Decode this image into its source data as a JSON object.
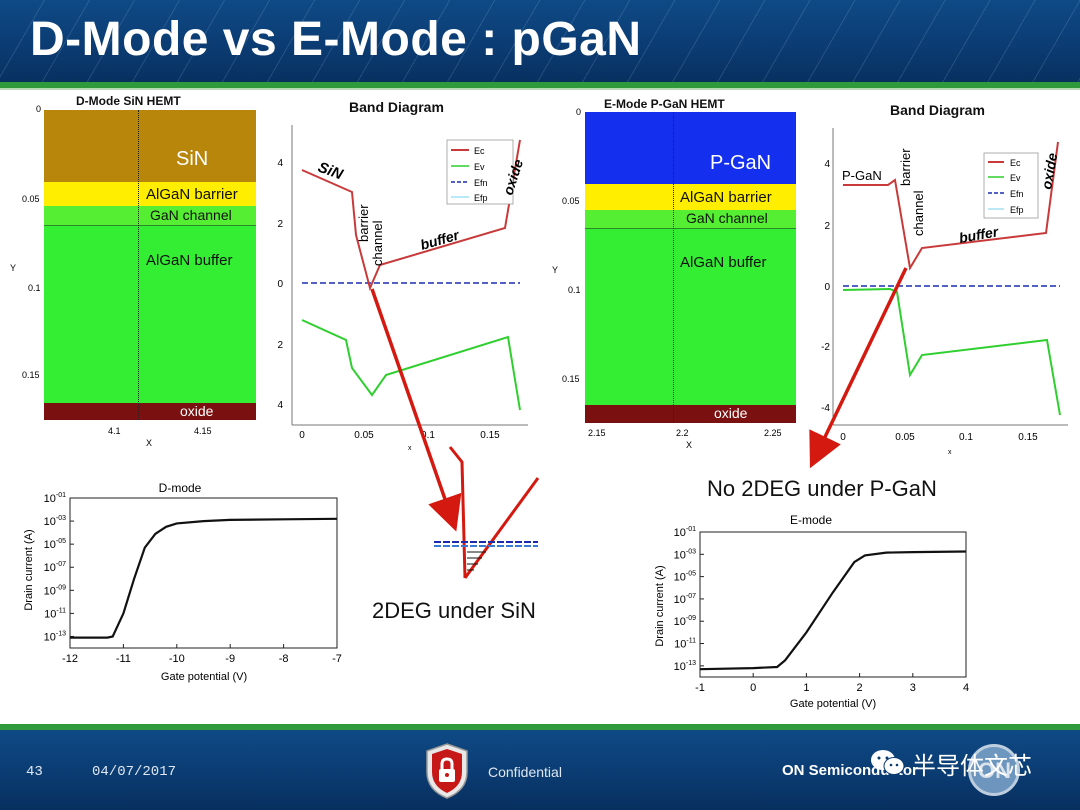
{
  "title": "D-Mode vs E-Mode : pGaN",
  "footer": {
    "page_number": "43",
    "date": "04/07/2017",
    "confidential": "Confidential",
    "company": "ON Semiconductor",
    "watermark": "半导体文芯",
    "icons": [
      "lock-shield-icon",
      "wechat-icon",
      "on-logo-icon"
    ]
  },
  "dmode_structure": {
    "title": "D-Mode SiN HEMT",
    "layers": [
      "SiN",
      "AlGaN barrier",
      "GaN channel",
      "AlGaN buffer",
      "oxide"
    ],
    "y_label": "Y",
    "x_label": "X",
    "y_ticks": [
      "0",
      "0.05",
      "0.1",
      "0.15"
    ],
    "x_ticks": [
      "4.1",
      "4.15"
    ],
    "colors": {
      "SiN": "#b8860b",
      "barrier": "#ffee00",
      "channel": "#44ee33",
      "buffer": "#33ee33",
      "oxide": "#7a1010"
    }
  },
  "emode_structure": {
    "title": "E-Mode P-GaN HEMT",
    "layers": [
      "P-GaN",
      "AlGaN barrier",
      "GaN channel",
      "AlGaN buffer",
      "oxide"
    ],
    "y_ticks": [
      "0",
      "0.05",
      "0.1",
      "0.15"
    ],
    "x_ticks": [
      "2.15",
      "2.2",
      "2.25"
    ],
    "x_label": "X",
    "colors": {
      "PGaN": "#1430ee"
    }
  },
  "band_left": {
    "title": "Band Diagram",
    "y_ticks": [
      "4",
      "2",
      "0",
      "2",
      "4"
    ],
    "x_ticks": [
      "0",
      "0.05",
      "0.1",
      "0.15"
    ],
    "x_label": "x",
    "legend": [
      "Ec",
      "Ev",
      "Efn",
      "Efp"
    ],
    "annotations": [
      "SiN",
      "barrier",
      "channel",
      "buffer",
      "oxide"
    ]
  },
  "band_right": {
    "title": "Band Diagram",
    "y_ticks": [
      "4",
      "2",
      "0",
      "-2",
      "-4"
    ],
    "x_ticks": [
      "0",
      "0.05",
      "0.1",
      "0.15"
    ],
    "x_label": "x",
    "legend": [
      "Ec",
      "Ev",
      "Efn",
      "Efp"
    ],
    "annotations": [
      "P-GaN",
      "barrier",
      "channel",
      "buffer",
      "oxide"
    ]
  },
  "inset": {
    "caption_left": "2DEG under SiN",
    "caption_right": "No 2DEG under P-GaN"
  },
  "chart_data": [
    {
      "type": "line",
      "title": "D-mode",
      "xlabel": "Gate potential (V)",
      "ylabel": "Drain current (A)",
      "x_ticks": [
        "-12",
        "-11",
        "-10",
        "-9",
        "-8",
        "-7"
      ],
      "y_ticks": [
        "10-01",
        "10-03",
        "10-05",
        "10-07",
        "10-09",
        "10-11",
        "10-13"
      ],
      "xlim": [
        -12,
        -7
      ],
      "ylim_log10": [
        -14,
        -1
      ],
      "x": [
        -12.0,
        -11.3,
        -11.2,
        -11.0,
        -10.8,
        -10.6,
        -10.4,
        -10.2,
        -10.0,
        -9.5,
        -9.0,
        -8.0,
        -7.0
      ],
      "y_log10": [
        -13.1,
        -13.1,
        -13.0,
        -11.0,
        -8.0,
        -5.3,
        -4.1,
        -3.5,
        -3.2,
        -3.0,
        -2.9,
        -2.85,
        -2.8
      ]
    },
    {
      "type": "line",
      "title": "E-mode",
      "xlabel": "Gate potential (V)",
      "ylabel": "Drain current (A)",
      "x_ticks": [
        "-1",
        "0",
        "1",
        "2",
        "3",
        "4"
      ],
      "y_ticks": [
        "10-01",
        "10-03",
        "10-05",
        "10-07",
        "10-09",
        "10-11",
        "10-13"
      ],
      "xlim": [
        -1,
        4
      ],
      "ylim_log10": [
        -14,
        -1
      ],
      "x": [
        -1.0,
        0.0,
        0.45,
        0.6,
        1.0,
        1.5,
        1.9,
        2.1,
        2.5,
        3.0,
        4.0
      ],
      "y_log10": [
        -13.3,
        -13.2,
        -13.1,
        -12.5,
        -10.0,
        -6.4,
        -3.7,
        -3.1,
        -2.85,
        -2.8,
        -2.75
      ]
    }
  ]
}
